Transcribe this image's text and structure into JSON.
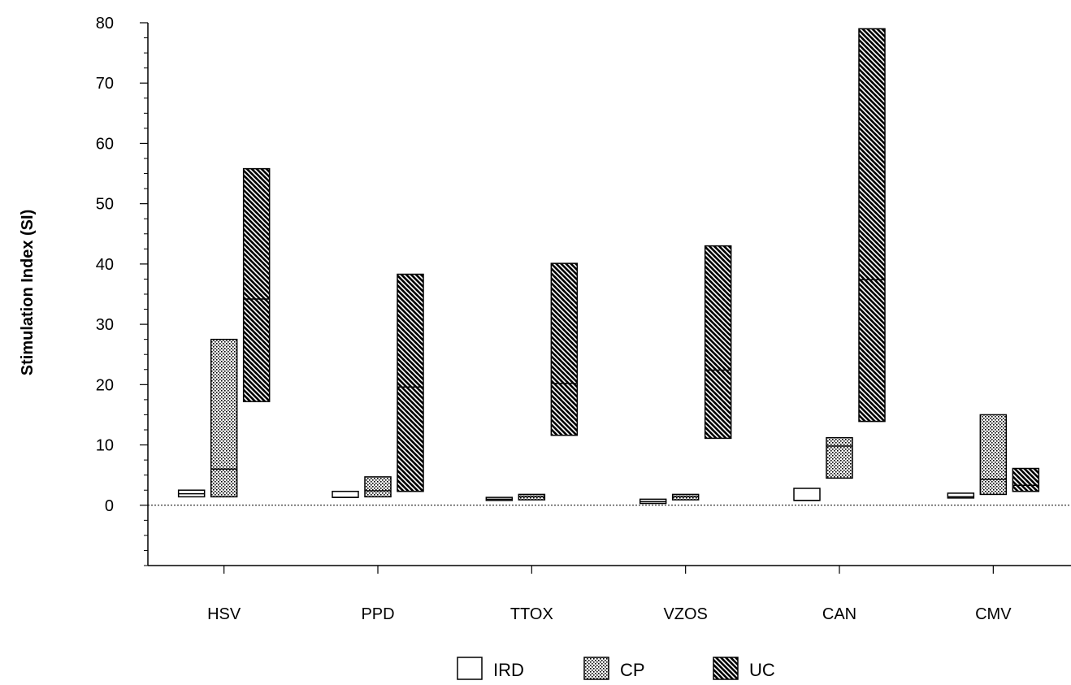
{
  "chart_data": {
    "type": "floating-bar",
    "title": "",
    "xlabel": "",
    "ylabel": "Stimulation Index (SI)",
    "ylim": [
      -10,
      80
    ],
    "yticks": [
      0,
      10,
      20,
      30,
      40,
      50,
      60,
      70,
      80
    ],
    "y_minor_step": 2.5,
    "reference_line": 0,
    "grid": false,
    "legend_position": "bottom-center",
    "categories": [
      "HSV",
      "PPD",
      "TTOX",
      "VZOS",
      "CAN",
      "CMV"
    ],
    "series": [
      {
        "name": "IRD",
        "pattern": "plain",
        "values": [
          {
            "low": 1.4,
            "median": 1.9,
            "high": 2.5
          },
          {
            "low": 1.3,
            "median": 1.3,
            "high": 2.3
          },
          {
            "low": 0.8,
            "median": 1.0,
            "high": 1.3
          },
          {
            "low": 0.3,
            "median": 0.6,
            "high": 1.0
          },
          {
            "low": 0.8,
            "median": 0.8,
            "high": 2.8
          },
          {
            "low": 1.2,
            "median": 1.4,
            "high": 2.0
          }
        ]
      },
      {
        "name": "CP",
        "pattern": "dotted",
        "values": [
          {
            "low": 1.4,
            "median": 6.0,
            "high": 27.5
          },
          {
            "low": 1.4,
            "median": 2.4,
            "high": 4.7
          },
          {
            "low": 0.9,
            "median": 1.4,
            "high": 1.8
          },
          {
            "low": 0.9,
            "median": 1.4,
            "high": 1.8
          },
          {
            "low": 4.5,
            "median": 9.8,
            "high": 11.2
          },
          {
            "low": 1.8,
            "median": 4.3,
            "high": 15.0
          }
        ]
      },
      {
        "name": "UC",
        "pattern": "diagonal-hatch",
        "values": [
          {
            "low": 17.2,
            "median": 34.2,
            "high": 55.8
          },
          {
            "low": 2.3,
            "median": 19.6,
            "high": 38.3
          },
          {
            "low": 11.6,
            "median": 20.2,
            "high": 40.1
          },
          {
            "low": 11.1,
            "median": 22.4,
            "high": 43.0
          },
          {
            "low": 13.9,
            "median": 37.4,
            "high": 79.0
          },
          {
            "low": 2.3,
            "median": 3.3,
            "high": 6.1
          }
        ]
      }
    ]
  }
}
